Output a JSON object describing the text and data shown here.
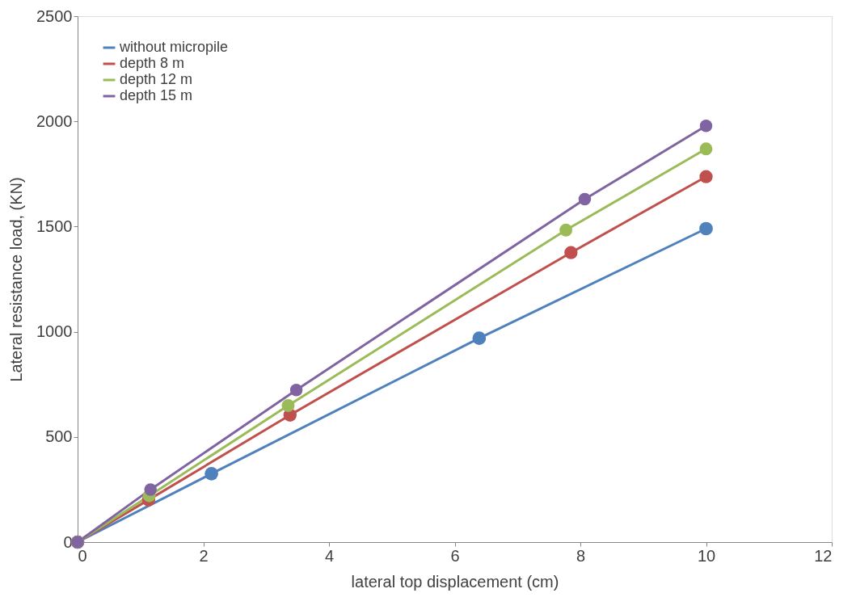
{
  "chart_data": {
    "type": "line",
    "xlabel": "lateral top displacement (cm)",
    "ylabel": "Lateral resistance load,  (KN)",
    "xlim": [
      0,
      12
    ],
    "xticks": [
      0,
      2,
      4,
      6,
      8,
      10,
      12
    ],
    "ylim": [
      0,
      2500
    ],
    "yticks": [
      0,
      500,
      1000,
      1500,
      2000,
      2500
    ],
    "grid": false,
    "legend": "top left",
    "marker": "circle",
    "line_style": "solid",
    "series": [
      {
        "name": "without micropile",
        "color": "#4f81bd",
        "x": [
          0,
          2.13,
          6.39,
          10
        ],
        "values": [
          0,
          325,
          969,
          1490
        ]
      },
      {
        "name": "depth 8 m",
        "color": "#c0504d",
        "x": [
          0,
          1.13,
          3.38,
          7.85,
          10
        ],
        "values": [
          0,
          201,
          604,
          1376,
          1737
        ]
      },
      {
        "name": "depth 12 m",
        "color": "#9bbb59",
        "x": [
          0,
          1.14,
          3.35,
          7.77,
          10
        ],
        "values": [
          0,
          220,
          649,
          1483,
          1869
        ]
      },
      {
        "name": "depth 15 m",
        "color": "#8064a2",
        "x": [
          0,
          1.16,
          3.48,
          8.07,
          10
        ],
        "values": [
          0,
          250,
          723,
          1630,
          1979
        ]
      }
    ]
  }
}
